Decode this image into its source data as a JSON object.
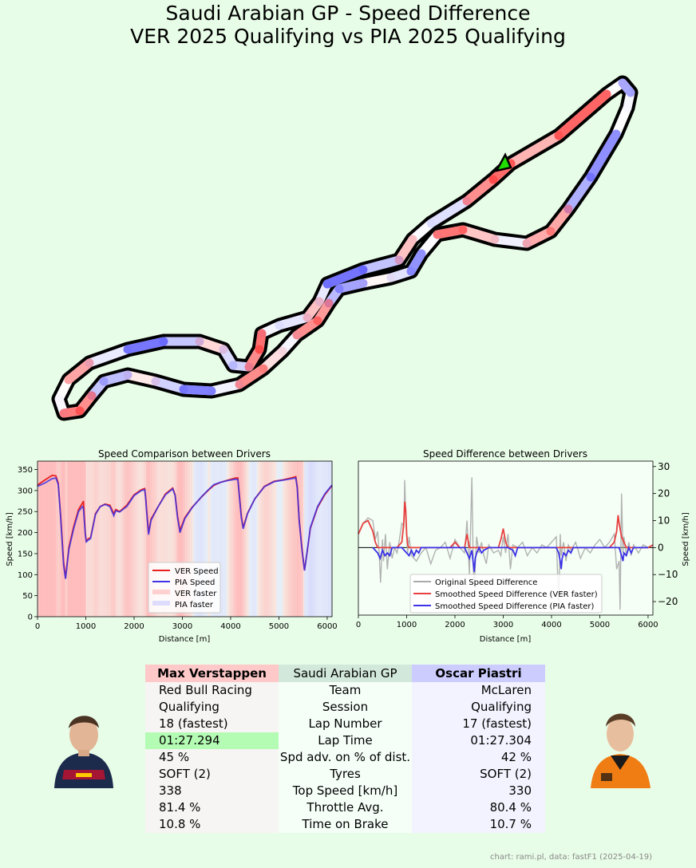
{
  "title": "Saudi Arabian GP - Speed Difference\nVER 2025 Qualifying vs PIA 2025 Qualifying",
  "colors": {
    "background": "#e8fde8",
    "ver": "#e82020",
    "pia": "#3c32e6",
    "ver_faster": "#ffb4b4",
    "pia_faster": "#c8c8ff",
    "start_marker": "#22dd00",
    "fastest_highlight": "#b4fcb4"
  },
  "chart_data": [
    {
      "type": "line",
      "title": "Speed Comparison between Drivers",
      "xlabel": "Distance [m]",
      "ylabel": "Speed [km/h]",
      "xlim": [
        0,
        6100
      ],
      "ylim": [
        0,
        370
      ],
      "xticks": [
        "0",
        "1000",
        "2000",
        "3000",
        "4000",
        "5000",
        "6000"
      ],
      "yticks": [
        "0",
        "50",
        "100",
        "150",
        "200",
        "250",
        "300",
        "350"
      ],
      "legend": "lower-center-right",
      "legend_entries": [
        "VER Speed",
        "PIA Speed",
        "VER faster",
        "PIA faster"
      ],
      "series": [
        {
          "name": "VER Speed",
          "x": [
            0,
            150,
            300,
            380,
            430,
            480,
            540,
            580,
            650,
            750,
            850,
            930,
            950,
            990,
            1010,
            1050,
            1100,
            1200,
            1300,
            1400,
            1500,
            1580,
            1620,
            1700,
            1850,
            2000,
            2150,
            2220,
            2240,
            2260,
            2300,
            2350,
            2400,
            2500,
            2650,
            2800,
            2850,
            2900,
            2950,
            3050,
            3200,
            3400,
            3550,
            3650,
            3700,
            3800,
            3950,
            4100,
            4150,
            4180,
            4220,
            4260,
            4350,
            4500,
            4700,
            4900,
            5100,
            5250,
            5350,
            5380,
            5420,
            5480,
            5530,
            5580,
            5650,
            5800,
            5950,
            6100
          ],
          "values": [
            313,
            325,
            336,
            335,
            318,
            240,
            130,
            92,
            165,
            215,
            255,
            270,
            275,
            200,
            180,
            185,
            188,
            245,
            262,
            268,
            265,
            245,
            255,
            250,
            265,
            290,
            302,
            305,
            285,
            255,
            200,
            232,
            242,
            262,
            292,
            306,
            290,
            240,
            205,
            235,
            260,
            285,
            302,
            312,
            315,
            320,
            325,
            330,
            330,
            290,
            240,
            212,
            246,
            280,
            310,
            322,
            326,
            330,
            333,
            310,
            230,
            160,
            110,
            150,
            210,
            260,
            290,
            312
          ]
        },
        {
          "name": "PIA Speed",
          "x": [
            0,
            150,
            300,
            380,
            430,
            480,
            540,
            580,
            650,
            750,
            850,
            930,
            950,
            990,
            1010,
            1050,
            1100,
            1200,
            1300,
            1400,
            1500,
            1580,
            1620,
            1700,
            1850,
            2000,
            2150,
            2220,
            2240,
            2260,
            2300,
            2350,
            2400,
            2500,
            2650,
            2800,
            2850,
            2900,
            2950,
            3050,
            3200,
            3400,
            3550,
            3650,
            3700,
            3800,
            3950,
            4100,
            4150,
            4180,
            4220,
            4260,
            4350,
            4500,
            4700,
            4900,
            5100,
            5250,
            5350,
            5380,
            5420,
            5480,
            5530,
            5580,
            5650,
            5800,
            5950,
            6100
          ],
          "values": [
            310,
            318,
            328,
            330,
            314,
            235,
            122,
            90,
            160,
            210,
            250,
            262,
            258,
            195,
            178,
            182,
            186,
            243,
            262,
            267,
            262,
            240,
            252,
            249,
            262,
            288,
            300,
            302,
            282,
            250,
            195,
            229,
            240,
            262,
            290,
            304,
            288,
            236,
            200,
            233,
            259,
            286,
            303,
            314,
            316,
            320,
            324,
            327,
            326,
            286,
            236,
            209,
            245,
            280,
            309,
            321,
            325,
            328,
            330,
            306,
            226,
            156,
            110,
            150,
            212,
            262,
            292,
            313
          ]
        }
      ],
      "shading_note": "background bands: red where VER faster, blue where PIA faster"
    },
    {
      "type": "line",
      "title": "Speed Difference between Drivers",
      "xlabel": "Distance [m]",
      "ylabel": "Speed [km/h]",
      "xlim": [
        0,
        6100
      ],
      "ylim": [
        -25,
        32
      ],
      "xticks": [
        "0",
        "1000",
        "2000",
        "3000",
        "4000",
        "5000",
        "6000"
      ],
      "yticks": [
        "30",
        "20",
        "10",
        "0",
        "−10",
        "−20"
      ],
      "legend": "lower-center-right",
      "legend_entries": [
        "Original Speed Difference",
        "Smoothed Speed Difference (VER faster)",
        "Smoothed Speed Difference (PIA faster)"
      ],
      "series": [
        {
          "name": "Original Speed Difference",
          "x": [
            0,
            100,
            200,
            300,
            350,
            400,
            430,
            460,
            500,
            520,
            560,
            600,
            650,
            700,
            750,
            800,
            850,
            900,
            940,
            960,
            980,
            1000,
            1020,
            1050,
            1100,
            1200,
            1300,
            1400,
            1500,
            1600,
            1700,
            1800,
            1900,
            2000,
            2100,
            2200,
            2250,
            2300,
            2350,
            2380,
            2400,
            2450,
            2500,
            2550,
            2600,
            2650,
            2700,
            2800,
            2900,
            2950,
            3000,
            3050,
            3100,
            3150,
            3200,
            3300,
            3400,
            3500,
            3600,
            3700,
            3800,
            3900,
            4000,
            4100,
            4150,
            4180,
            4200,
            4250,
            4300,
            4350,
            4400,
            4500,
            4600,
            4700,
            4800,
            4900,
            5000,
            5100,
            5200,
            5300,
            5350,
            5400,
            5420,
            5450,
            5480,
            5500,
            5550,
            5600,
            5650,
            5700,
            5800,
            5900,
            6000,
            6100
          ],
          "values": [
            5,
            9,
            11,
            10,
            3,
            6,
            -2,
            -13,
            3,
            -5,
            5,
            -8,
            2,
            -4,
            0,
            -2,
            3,
            9,
            8,
            25,
            12,
            5,
            -2,
            4,
            -3,
            -5,
            -2,
            0,
            -6,
            -1,
            0,
            2,
            -4,
            3,
            0,
            -2,
            10,
            -10,
            26,
            -8,
            -14,
            4,
            -2,
            2,
            -3,
            -6,
            1,
            -2,
            -1,
            -3,
            4,
            -2,
            5,
            -8,
            1,
            0,
            2,
            -3,
            0,
            -2,
            1,
            0,
            2,
            4,
            -22,
            5,
            -3,
            2,
            -5,
            1,
            -1,
            2,
            -4,
            0,
            -2,
            1,
            3,
            0,
            2,
            5,
            -8,
            -5,
            -23,
            20,
            -2,
            4,
            -3,
            2,
            -3,
            1,
            -2,
            1,
            0,
            1
          ]
        },
        {
          "name": "Smoothed Speed Difference (VER faster)",
          "x": [
            0,
            100,
            200,
            300,
            350,
            400,
            500,
            600,
            700,
            800,
            900,
            940,
            960,
            980,
            1000,
            1020,
            1050,
            1100,
            1150,
            1200,
            1300,
            1400,
            1500,
            1600,
            1700,
            1800,
            1900,
            2000,
            2100,
            2200,
            2250,
            2300,
            2350,
            2380,
            2400,
            2450,
            2500,
            2600,
            2700,
            2800,
            2900,
            2950,
            3000,
            3050,
            3100,
            3200,
            3300,
            3400,
            3500,
            3600,
            3700,
            3800,
            3900,
            4000,
            4100,
            4150,
            4200,
            4300,
            4400,
            4500,
            4600,
            4700,
            4800,
            4900,
            5000,
            5100,
            5200,
            5300,
            5350,
            5380,
            5400,
            5450,
            5500,
            5550,
            5600,
            5700,
            5800,
            5900,
            6000,
            6100
          ],
          "values": [
            5,
            9,
            10,
            6,
            2,
            0,
            0,
            0,
            0,
            0,
            2,
            9,
            17,
            14,
            5,
            1,
            0,
            0,
            0,
            0,
            0,
            0,
            0,
            0,
            0,
            0,
            0,
            2,
            0,
            0,
            5,
            0,
            0,
            0,
            0,
            0,
            0,
            0,
            0,
            0,
            0,
            3,
            7,
            2,
            0,
            0,
            0,
            0,
            0,
            0,
            0,
            0,
            0,
            0,
            0,
            0,
            0,
            0,
            0,
            0,
            0,
            0,
            0,
            0,
            0,
            0,
            0,
            2,
            6,
            12,
            9,
            4,
            2,
            0,
            0,
            0,
            0,
            0,
            0,
            1
          ]
        },
        {
          "name": "Smoothed Speed Difference (PIA faster)",
          "x": [
            300,
            400,
            450,
            500,
            550,
            600,
            650,
            700,
            750,
            800,
            850,
            900,
            1000,
            1050,
            1100,
            1150,
            1200,
            1250,
            1300,
            1400,
            1500,
            1550,
            1600,
            1650,
            1700,
            1800,
            1900,
            2000,
            2100,
            2200,
            2300,
            2350,
            2380,
            2400,
            2420,
            2450,
            2500,
            2550,
            2600,
            2700,
            2800,
            2900,
            3000,
            3100,
            3200,
            3250,
            3300,
            3400,
            3500,
            3600,
            3700,
            3800,
            3900,
            4000,
            4100,
            4150,
            4180,
            4200,
            4220,
            4250,
            4300,
            4350,
            4400,
            4450,
            4500,
            4600,
            4700,
            4800,
            4900,
            5000,
            5100,
            5200,
            5300,
            5400,
            5450,
            5480,
            5500,
            5550,
            5600,
            5650,
            5700,
            5800,
            5900,
            6000
          ],
          "values": [
            0,
            -2,
            -4,
            -1,
            -3,
            -2,
            -3,
            0,
            0,
            0,
            0,
            0,
            -2,
            -3,
            -1,
            -3,
            -1,
            -2,
            0,
            0,
            0,
            0,
            0,
            0,
            0,
            0,
            0,
            0,
            0,
            0,
            -4,
            -1,
            -6,
            -9,
            -4,
            -2,
            0,
            -2,
            -1,
            0,
            0,
            0,
            0,
            0,
            -1,
            -3,
            0,
            0,
            0,
            0,
            0,
            0,
            0,
            0,
            0,
            -2,
            -5,
            -8,
            -4,
            -2,
            -3,
            -1,
            -2,
            0,
            0,
            0,
            0,
            0,
            0,
            0,
            0,
            0,
            0,
            0,
            -3,
            -5,
            -2,
            -3,
            0,
            -2,
            0,
            0,
            0,
            0
          ]
        }
      ]
    }
  ],
  "track_map": {
    "description": "circuit outline coloured by which driver was faster",
    "start_marker": "green triangle"
  },
  "table": {
    "headers": [
      "Max Verstappen",
      "Saudi Arabian GP",
      "Oscar Piastri"
    ],
    "rows": [
      [
        "Red Bull Racing",
        "Team",
        "McLaren"
      ],
      [
        "Qualifying",
        "Session",
        "Qualifying"
      ],
      [
        "18 (fastest)",
        "Lap Number",
        "17 (fastest)"
      ],
      [
        "01:27.294",
        "Lap Time",
        "01:27.304"
      ],
      [
        "45 %",
        "Spd adv. on % of dist.",
        "42 %"
      ],
      [
        "SOFT (2)",
        "Tyres",
        "SOFT (2)"
      ],
      [
        "338",
        "Top Speed [km/h]",
        "330"
      ],
      [
        "81.4 %",
        "Throttle Avg.",
        "80.4 %"
      ],
      [
        "10.8 %",
        "Time on Brake",
        "10.7 %"
      ]
    ],
    "best_lap_row": 3
  },
  "footer": "chart: rami.pl, data: fastF1 (2025-04-19)"
}
